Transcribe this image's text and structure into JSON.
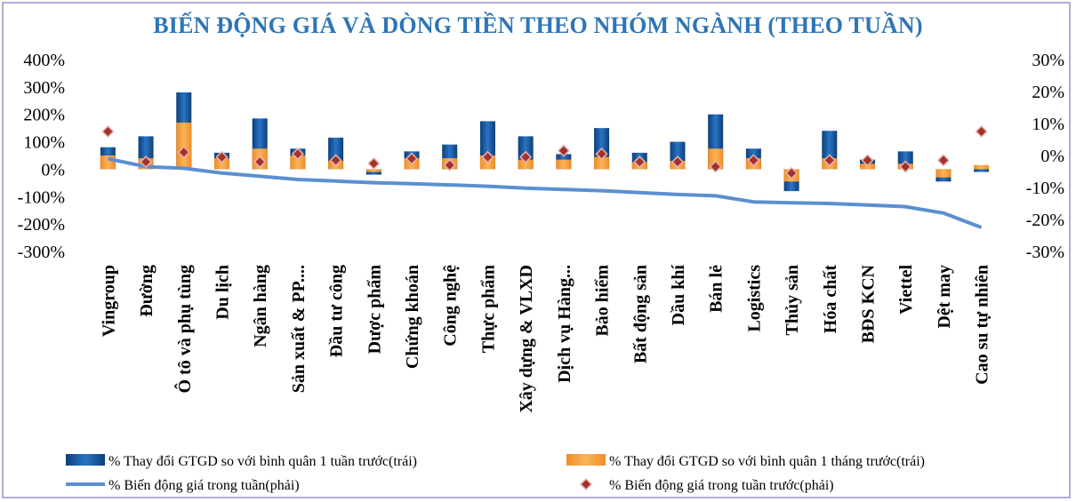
{
  "chart_data": {
    "type": "bar",
    "title": "BIẾN ĐỘNG GIÁ VÀ DÒNG TIỀN THEO NHÓM NGÀNH (THEO TUẦN)",
    "categories": [
      "Vingroup",
      "Đường",
      "Ô tô và phụ tùng",
      "Du lịch",
      "Ngân hàng",
      "Sản xuất & PP....",
      "Đầu tư công",
      "Dược phẩm",
      "Chứng khoán",
      "Công nghệ",
      "Thực phẩm",
      "Xây dựng & VLXD",
      "Dịch vụ Hàng...",
      "Bảo hiểm",
      "Bất động sản",
      "Dầu khí",
      "Bán lẻ",
      "Logistics",
      "Thủy sản",
      "Hóa chất",
      "BĐS KCN",
      "Viettel",
      "Dệt may",
      "Cao su tự nhiên"
    ],
    "y_left": {
      "ticks": [
        "400%",
        "300%",
        "200%",
        "100%",
        "0%",
        "-100%",
        "-200%",
        "-300%"
      ],
      "min": -300,
      "max": 400
    },
    "y_right": {
      "ticks": [
        "30%",
        "20%",
        "10%",
        "0%",
        "-10%",
        "-20%",
        "-30%"
      ],
      "min": -30,
      "max": 30
    },
    "series": [
      {
        "name": "% Thay đổi GTGD so với bình quân 1 tuần trước(trái)",
        "axis": "left",
        "kind": "bar",
        "color": "#1f5fa8",
        "values": [
          80,
          120,
          280,
          60,
          185,
          75,
          115,
          -20,
          65,
          90,
          175,
          120,
          55,
          150,
          60,
          100,
          200,
          75,
          -80,
          140,
          35,
          65,
          -45,
          -10
        ]
      },
      {
        "name": "% Thay đổi GTGD so với bình quân 1 tháng trước(trái)",
        "axis": "left",
        "kind": "bar",
        "color": "#f5a045",
        "values": [
          50,
          40,
          170,
          40,
          75,
          50,
          30,
          -10,
          40,
          40,
          50,
          35,
          35,
          45,
          25,
          30,
          75,
          40,
          -45,
          40,
          20,
          20,
          -30,
          15
        ]
      },
      {
        "name": "% Biến động giá trong tuần(phải)",
        "axis": "right",
        "kind": "line",
        "color": "#5b8fd0",
        "values": [
          -1.0,
          -3.5,
          -4.0,
          -5.5,
          -6.5,
          -7.5,
          -8.0,
          -8.5,
          -8.8,
          -9.2,
          -9.6,
          -10.2,
          -10.6,
          -11.0,
          -11.6,
          -12.2,
          -12.6,
          -14.5,
          -14.8,
          -15.0,
          -15.5,
          -16.0,
          -18.0,
          -22.5
        ]
      },
      {
        "name": "% Biến động giá trong tuần trước(phải)",
        "axis": "right",
        "kind": "marker",
        "color": "#a52a2a",
        "values": [
          7.5,
          -2.0,
          1.0,
          -0.5,
          -2.0,
          0.5,
          -1.5,
          -2.5,
          -1.0,
          -3.0,
          -0.5,
          -0.5,
          1.5,
          0.5,
          -2.0,
          -2.0,
          -3.5,
          -1.5,
          -5.5,
          -1.5,
          -1.5,
          -3.5,
          -1.5,
          7.5
        ]
      }
    ],
    "legend_position": "bottom",
    "grid": false
  }
}
